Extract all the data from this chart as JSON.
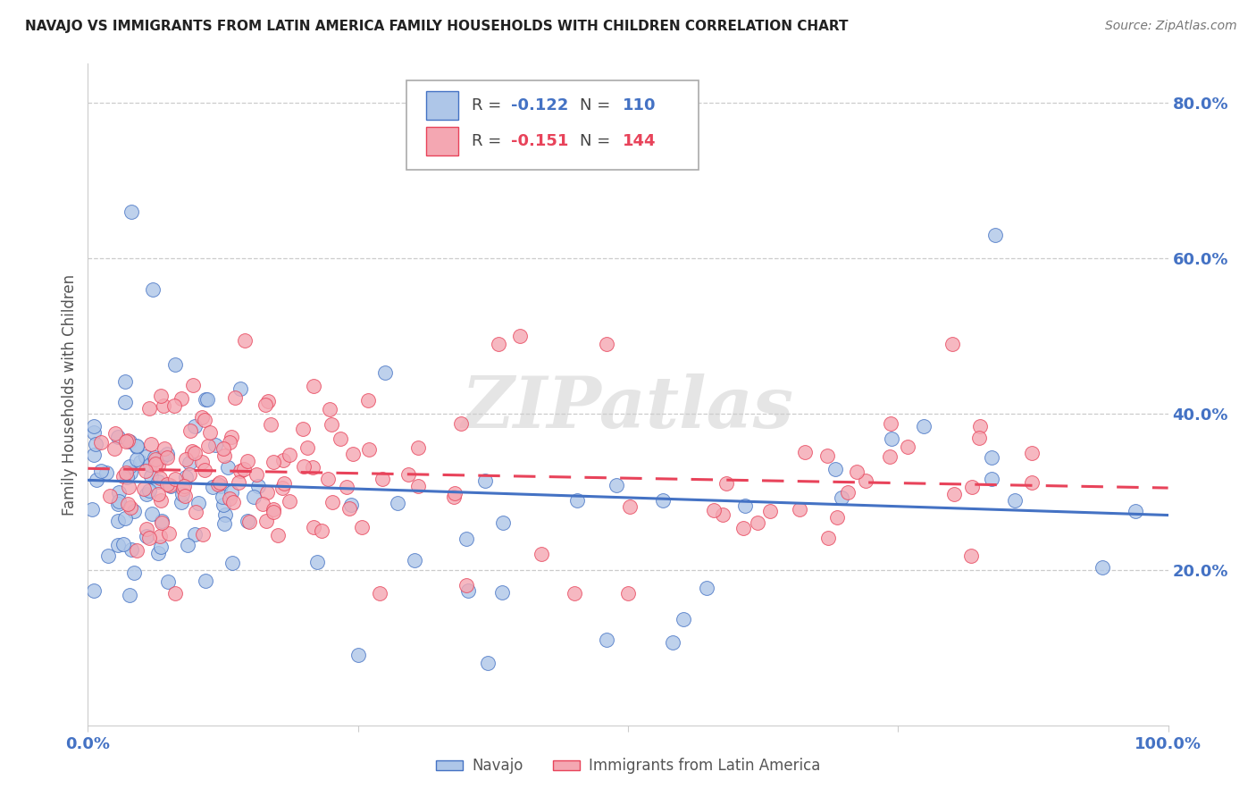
{
  "title": "NAVAJO VS IMMIGRANTS FROM LATIN AMERICA FAMILY HOUSEHOLDS WITH CHILDREN CORRELATION CHART",
  "source": "Source: ZipAtlas.com",
  "ylabel": "Family Households with Children",
  "legend_label1": "Navajo",
  "legend_label2": "Immigrants from Latin America",
  "R1": -0.122,
  "N1": 110,
  "R2": -0.151,
  "N2": 144,
  "xlim": [
    0.0,
    1.0
  ],
  "ylim": [
    0.0,
    0.85
  ],
  "ytick_positions": [
    0.2,
    0.4,
    0.6,
    0.8
  ],
  "ytick_labels": [
    "20.0%",
    "40.0%",
    "60.0%",
    "80.0%"
  ],
  "color_navajo": "#aec6e8",
  "color_latin": "#f4a7b2",
  "line_color_navajo": "#4472c4",
  "line_color_latin": "#e8435a",
  "watermark": "ZIPatlas",
  "background_color": "#ffffff",
  "title_fontsize": 11,
  "axis_label_color": "#4472c4",
  "seed_navajo": 7,
  "seed_latin": 13,
  "navajo_line_start_y": 0.315,
  "navajo_line_end_y": 0.27,
  "latin_line_start_y": 0.33,
  "latin_line_end_y": 0.305
}
